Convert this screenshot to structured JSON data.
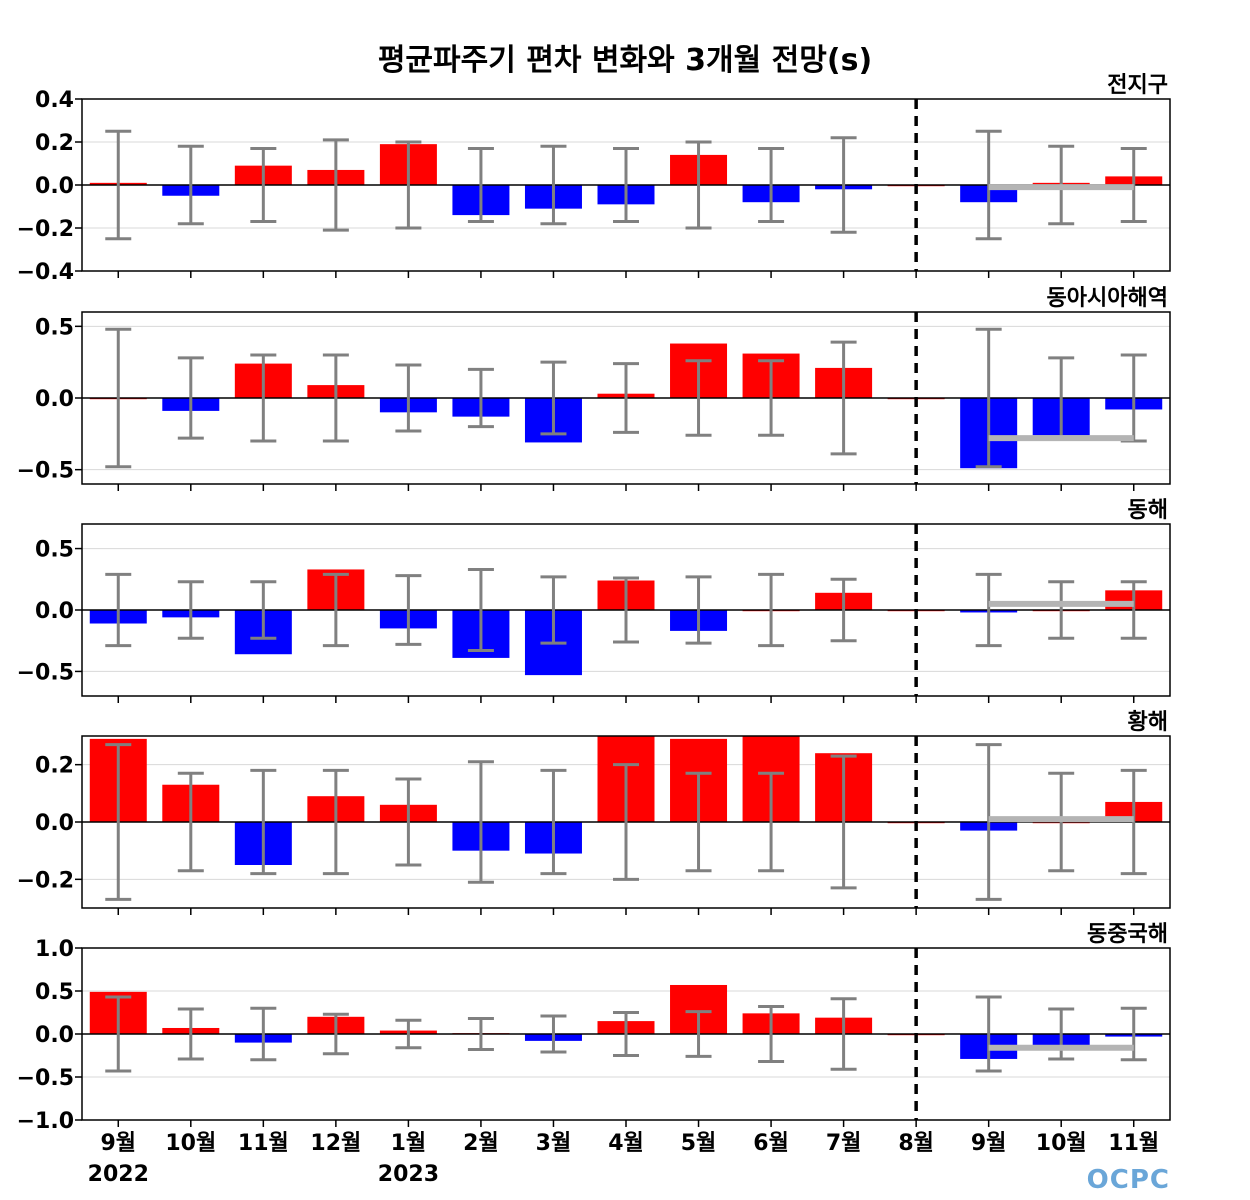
{
  "title": "평균파주기 편차 변화와 3개월 전망(s)",
  "logo": "OCPC",
  "colors": {
    "positive": "#ff0000",
    "negative": "#0000ff",
    "error_bar": "#808080",
    "forecast_line": "#b4b4b4"
  },
  "chart_data": {
    "type": "bar",
    "categories": [
      "9월",
      "10월",
      "11월",
      "12월",
      "1월",
      "2월",
      "3월",
      "4월",
      "5월",
      "6월",
      "7월",
      "8월",
      "9월",
      "10월",
      "11월"
    ],
    "year_labels": [
      {
        "index": 0,
        "label": "2022"
      },
      {
        "index": 4,
        "label": "2023"
      }
    ],
    "forecast_divider_index": 11,
    "panels": [
      {
        "name": "전지구",
        "ylim": [
          -0.4,
          0.4
        ],
        "yticks": [
          0.4,
          0.2,
          0.0,
          -0.2,
          -0.4
        ],
        "ytick_labels": [
          "0.4",
          "0.2",
          "0.0",
          "−0.2",
          "−0.4"
        ],
        "values": [
          0.01,
          -0.05,
          0.09,
          0.07,
          0.19,
          -0.14,
          -0.11,
          -0.09,
          0.14,
          -0.08,
          -0.02,
          0.0,
          -0.08,
          0.01,
          0.04
        ],
        "errors": [
          0.25,
          0.18,
          0.17,
          0.21,
          0.2,
          0.17,
          0.18,
          0.17,
          0.2,
          0.17,
          0.22,
          0.0,
          0.25,
          0.18,
          0.17
        ],
        "forecast_mean": -0.01
      },
      {
        "name": "동아시아해역",
        "ylim": [
          -0.6,
          0.6
        ],
        "yticks": [
          0.5,
          0.0,
          -0.5
        ],
        "ytick_labels": [
          "0.5",
          "0.0",
          "−0.5"
        ],
        "values": [
          0.0,
          -0.09,
          0.24,
          0.09,
          -0.1,
          -0.13,
          -0.31,
          0.03,
          0.38,
          0.31,
          0.21,
          0.0,
          -0.49,
          -0.26,
          -0.08
        ],
        "errors": [
          0.48,
          0.28,
          0.3,
          0.3,
          0.23,
          0.2,
          0.25,
          0.24,
          0.26,
          0.26,
          0.39,
          0.0,
          0.48,
          0.28,
          0.3
        ],
        "forecast_mean": -0.28
      },
      {
        "name": "동해",
        "ylim": [
          -0.7,
          0.7
        ],
        "yticks": [
          0.5,
          0.0,
          -0.5
        ],
        "ytick_labels": [
          "0.5",
          "0.0",
          "−0.5"
        ],
        "values": [
          -0.11,
          -0.06,
          -0.36,
          0.33,
          -0.15,
          -0.39,
          -0.53,
          0.24,
          -0.17,
          0.0,
          0.14,
          0.0,
          -0.02,
          0.0,
          0.16
        ],
        "errors": [
          0.29,
          0.23,
          0.23,
          0.29,
          0.28,
          0.33,
          0.27,
          0.26,
          0.27,
          0.29,
          0.25,
          0.0,
          0.29,
          0.23,
          0.23
        ],
        "forecast_mean": 0.05
      },
      {
        "name": "황해",
        "ylim": [
          -0.3,
          0.3
        ],
        "yticks": [
          0.2,
          0.0,
          -0.2
        ],
        "ytick_labels": [
          "0.2",
          "0.0",
          "−0.2"
        ],
        "values": [
          0.29,
          0.13,
          -0.15,
          0.09,
          0.06,
          -0.1,
          -0.11,
          0.31,
          0.29,
          0.31,
          0.24,
          0.0,
          -0.03,
          0.0,
          0.07
        ],
        "errors": [
          0.27,
          0.17,
          0.18,
          0.18,
          0.15,
          0.21,
          0.18,
          0.2,
          0.17,
          0.17,
          0.23,
          0.0,
          0.27,
          0.17,
          0.18
        ],
        "forecast_mean": 0.01
      },
      {
        "name": "동중국해",
        "ylim": [
          -1.0,
          1.0
        ],
        "yticks": [
          1.0,
          0.5,
          0.0,
          -0.5,
          -1.0
        ],
        "ytick_labels": [
          "1.0",
          "0.5",
          "0.0",
          "−0.5",
          "−1.0"
        ],
        "values": [
          0.49,
          0.07,
          -0.1,
          0.2,
          0.04,
          0.01,
          -0.08,
          0.15,
          0.57,
          0.24,
          0.19,
          0.0,
          -0.29,
          -0.14,
          -0.03
        ],
        "errors": [
          0.43,
          0.29,
          0.3,
          0.23,
          0.16,
          0.18,
          0.21,
          0.25,
          0.26,
          0.32,
          0.41,
          0.0,
          0.43,
          0.29,
          0.3
        ],
        "forecast_mean": -0.16
      }
    ],
    "grid": true,
    "xlabel": "",
    "ylabel": ""
  }
}
